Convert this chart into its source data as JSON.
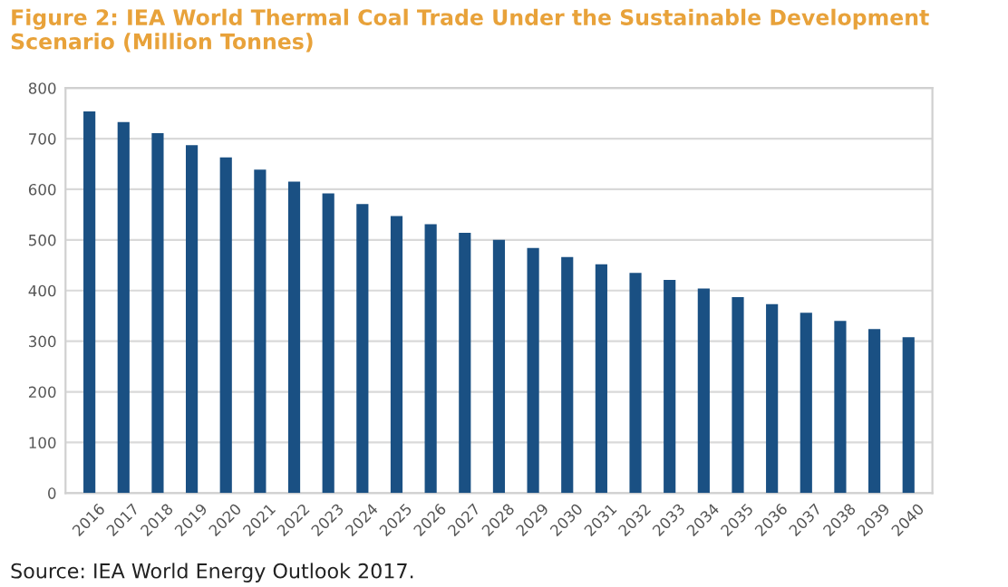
{
  "chart_data": {
    "type": "bar",
    "title": "Figure 2: IEA World Thermal Coal Trade Under the Sustainable Development Scenario (Million Tonnes)",
    "categories": [
      "2016",
      "2017",
      "2018",
      "2019",
      "2020",
      "2021",
      "2022",
      "2023",
      "2024",
      "2025",
      "2026",
      "2027",
      "2028",
      "2029",
      "2030",
      "2031",
      "2032",
      "2033",
      "2034",
      "2035",
      "2036",
      "2037",
      "2038",
      "2039",
      "2040"
    ],
    "values": [
      754,
      733,
      711,
      687,
      663,
      639,
      615,
      592,
      571,
      547,
      531,
      514,
      500,
      484,
      466,
      452,
      435,
      421,
      404,
      387,
      373,
      356,
      340,
      324,
      308
    ],
    "color": "#1a5083",
    "ylim": [
      0,
      800
    ],
    "yticks": [
      0,
      100,
      200,
      300,
      400,
      500,
      600,
      700,
      800
    ],
    "grid": "y",
    "annotations": [
      "Source: IEA World Energy Outlook 2017."
    ]
  }
}
